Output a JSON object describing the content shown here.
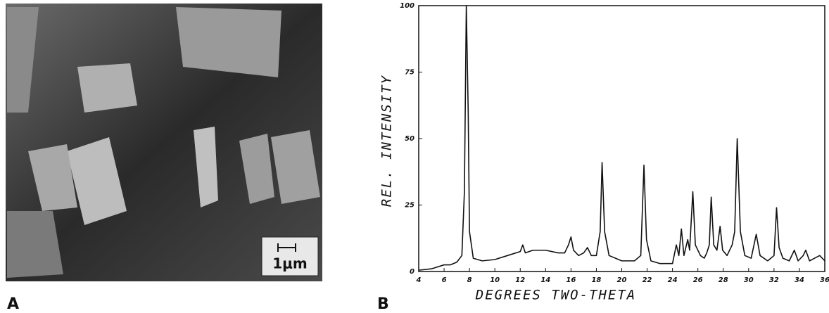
{
  "image": {
    "label": "A",
    "scale_bar": "1μm"
  },
  "chart_data": {
    "type": "line",
    "panel_label": "B",
    "x_label": "DEGREES TWO-THETA",
    "y_label": "REL. INTENSITY",
    "xlim": [
      4,
      36
    ],
    "ylim": [
      0,
      100
    ],
    "xticks": [
      4,
      6,
      8,
      10,
      12,
      14,
      16,
      18,
      20,
      22,
      24,
      26,
      28,
      30,
      32,
      34,
      36
    ],
    "yticks": [
      0,
      25,
      50,
      75,
      100
    ],
    "color": "#111111",
    "x": [
      4,
      5,
      6,
      6.5,
      7,
      7.4,
      7.6,
      7.75,
      7.9,
      8.0,
      8.3,
      9,
      10,
      11,
      12,
      12.2,
      12.4,
      13,
      14,
      15,
      15.5,
      15.8,
      16,
      16.2,
      16.6,
      17,
      17.3,
      17.6,
      18,
      18.3,
      18.45,
      18.65,
      19,
      20,
      21,
      21.5,
      21.75,
      21.95,
      22.3,
      23,
      24,
      24.3,
      24.5,
      24.7,
      24.9,
      25.2,
      25.35,
      25.6,
      25.8,
      26.2,
      26.5,
      26.7,
      26.9,
      27.05,
      27.25,
      27.5,
      27.75,
      27.95,
      28.3,
      28.7,
      28.9,
      29.1,
      29.35,
      29.7,
      30.2,
      30.6,
      30.9,
      31.5,
      32,
      32.2,
      32.4,
      32.7,
      33.2,
      33.6,
      33.9,
      34.3,
      34.5,
      34.8,
      35.2,
      35.6,
      36
    ],
    "values": [
      0.5,
      1,
      2.5,
      2.5,
      3.5,
      6,
      30,
      100,
      60,
      15,
      5,
      4,
      4.5,
      6,
      7.5,
      10,
      7,
      8,
      8,
      7,
      7,
      10,
      13,
      8,
      6,
      7,
      9,
      6,
      6,
      15,
      41,
      15,
      6,
      4,
      4,
      6,
      40,
      12,
      4,
      3,
      3,
      10,
      6,
      16,
      6,
      12,
      8,
      30,
      10,
      6,
      5,
      7,
      10,
      28,
      10,
      8,
      17,
      8,
      6,
      10,
      15,
      50,
      15,
      6,
      5,
      14,
      6,
      4,
      6,
      24,
      9,
      5,
      4,
      8,
      4,
      6,
      8,
      4,
      5,
      6,
      4
    ]
  }
}
